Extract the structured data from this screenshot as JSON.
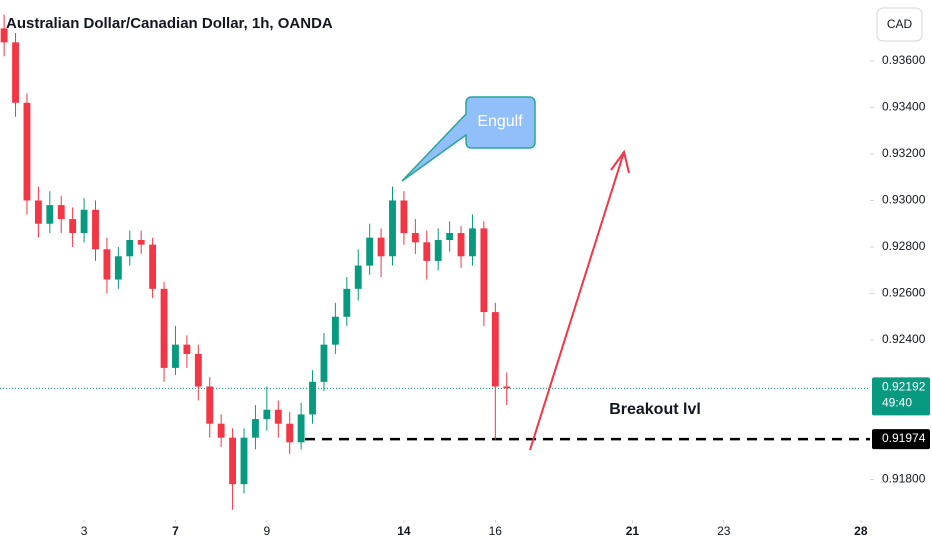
{
  "chart_data": {
    "type": "candlestick",
    "title": "Australian Dollar/Canadian Dollar, 1h, OANDA",
    "currency": "CAD",
    "x": [
      -1.75,
      -1.5,
      -1.25,
      -1,
      -0.75,
      -0.5,
      -0.25,
      0,
      0.25,
      0.5,
      0.75,
      1,
      1.25,
      1.5,
      1.75,
      2,
      2.25,
      2.5,
      2.75,
      3,
      3.25,
      3.5,
      3.75,
      4,
      4.25,
      4.5,
      4.75,
      5,
      5.25,
      5.5,
      5.75,
      6,
      6.25,
      6.5,
      6.75,
      7,
      7.25,
      7.5,
      7.75,
      8,
      8.25,
      8.5,
      8.75,
      9,
      9.25
    ],
    "open": [
      0.9374,
      0.9368,
      0.9342,
      0.93,
      0.929,
      0.9298,
      0.9292,
      0.9286,
      0.9296,
      0.9279,
      0.9266,
      0.9276,
      0.9283,
      0.9281,
      0.9262,
      0.9228,
      0.9238,
      0.9234,
      0.922,
      0.9204,
      0.9198,
      0.9178,
      0.9198,
      0.9206,
      0.921,
      0.9204,
      0.9196,
      0.9208,
      0.9222,
      0.9238,
      0.925,
      0.9262,
      0.9272,
      0.9284,
      0.9276,
      0.93,
      0.9286,
      0.9282,
      0.9274,
      0.9283,
      0.9286,
      0.9276,
      0.9288,
      0.9252,
      0.922
    ],
    "high": [
      0.938,
      0.9372,
      0.9346,
      0.9306,
      0.9304,
      0.9302,
      0.9297,
      0.9301,
      0.93,
      0.9284,
      0.928,
      0.9287,
      0.9287,
      0.9284,
      0.9265,
      0.9246,
      0.9242,
      0.9238,
      0.9224,
      0.9208,
      0.9202,
      0.9202,
      0.9212,
      0.922,
      0.9214,
      0.9209,
      0.9213,
      0.9227,
      0.9243,
      0.9256,
      0.9267,
      0.9279,
      0.929,
      0.9288,
      0.9306,
      0.9304,
      0.9292,
      0.9287,
      0.9288,
      0.9291,
      0.9289,
      0.9294,
      0.9291,
      0.9256,
      0.9226
    ],
    "low": [
      0.9362,
      0.9336,
      0.9294,
      0.9284,
      0.9286,
      0.9286,
      0.928,
      0.9282,
      0.9274,
      0.926,
      0.9262,
      0.9272,
      0.9277,
      0.9258,
      0.9222,
      0.9225,
      0.9228,
      0.9214,
      0.9198,
      0.9194,
      0.9167,
      0.9174,
      0.9193,
      0.9201,
      0.9198,
      0.9191,
      0.9193,
      0.9204,
      0.9218,
      0.9234,
      0.9246,
      0.9257,
      0.9268,
      0.9267,
      0.9272,
      0.9281,
      0.9277,
      0.9266,
      0.927,
      0.9278,
      0.9271,
      0.9272,
      0.9246,
      0.91971,
      0.9212
    ],
    "close": [
      0.9368,
      0.9342,
      0.93,
      0.929,
      0.9298,
      0.9292,
      0.9286,
      0.9296,
      0.9279,
      0.9266,
      0.9276,
      0.9283,
      0.9281,
      0.9262,
      0.9228,
      0.9238,
      0.9234,
      0.922,
      0.9204,
      0.9198,
      0.9178,
      0.9198,
      0.9206,
      0.921,
      0.9204,
      0.9196,
      0.9208,
      0.9222,
      0.9238,
      0.925,
      0.9262,
      0.9272,
      0.9284,
      0.9276,
      0.93,
      0.9286,
      0.9282,
      0.9274,
      0.9283,
      0.9286,
      0.9276,
      0.9288,
      0.9252,
      0.922,
      0.92192
    ],
    "up_color": "#089981",
    "down_color": "#f23645",
    "xlim": [
      -1.84,
      17.2
    ],
    "ylim": [
      0.91626,
      0.93862
    ],
    "xticks": [
      {
        "value": 0,
        "label": "3",
        "major": false
      },
      {
        "value": 2,
        "label": "7",
        "major": true
      },
      {
        "value": 4,
        "label": "9",
        "major": false
      },
      {
        "value": 7,
        "label": "14",
        "major": true
      },
      {
        "value": 9,
        "label": "16",
        "major": false
      },
      {
        "value": 12,
        "label": "21",
        "major": true
      },
      {
        "value": 14,
        "label": "23",
        "major": false
      },
      {
        "value": 17,
        "label": "28",
        "major": true
      }
    ],
    "yticks": [
      {
        "value": 0.936,
        "label": "0.93600"
      },
      {
        "value": 0.934,
        "label": "0.93400"
      },
      {
        "value": 0.932,
        "label": "0.93200"
      },
      {
        "value": 0.93,
        "label": "0.93000"
      },
      {
        "value": 0.928,
        "label": "0.92800"
      },
      {
        "value": 0.926,
        "label": "0.92600"
      },
      {
        "value": 0.924,
        "label": "0.92400"
      },
      {
        "value": 0.918,
        "label": "0.91800"
      }
    ],
    "last_price": 0.92192,
    "countdown": "49:40",
    "breakout_level": 0.91974,
    "breakout_label": "Breakout lvl",
    "annotation": "Engulf"
  }
}
